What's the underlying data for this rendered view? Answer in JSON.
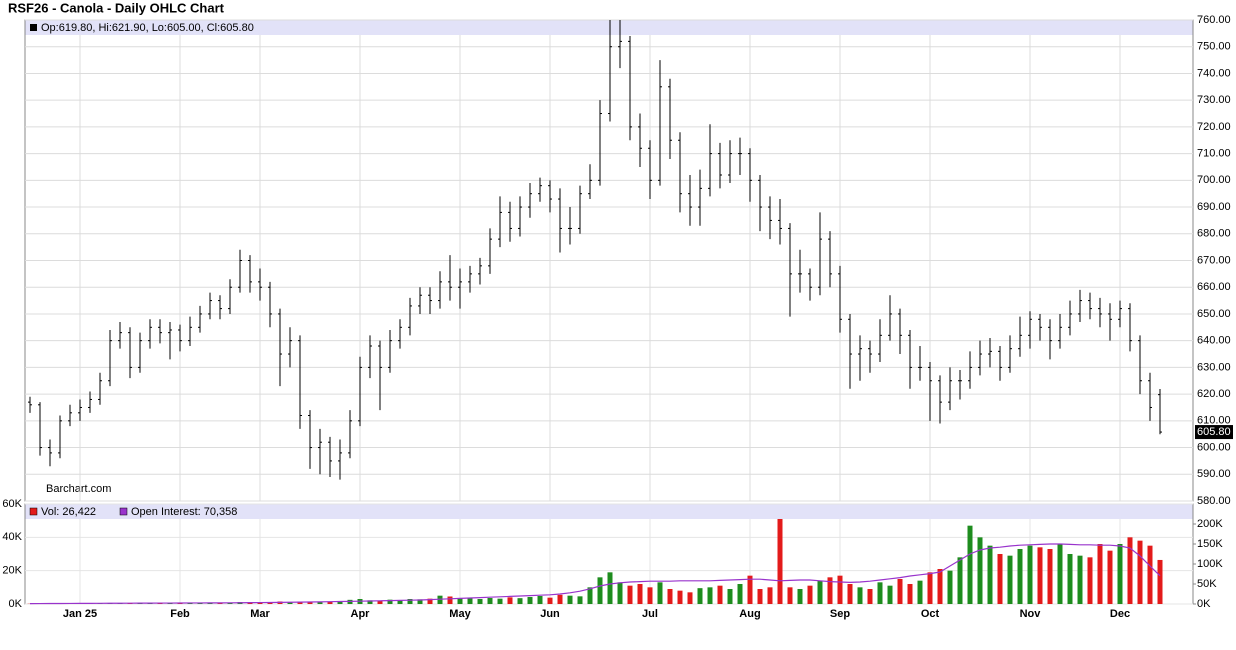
{
  "chart_data": [
    {
      "type": "ohlc",
      "title": "RSF26 - Canola - Daily OHLC Chart",
      "info": "Op:619.80, Hi:621.90, Lo:605.00, Cl:605.80",
      "watermark": "Barchart.com",
      "color": "#000000",
      "last_label": {
        "value": 605.8,
        "label": "605.80"
      },
      "ylim": [
        580,
        760
      ],
      "yticks": [
        {
          "value": 580,
          "label": "580.00"
        },
        {
          "value": 590,
          "label": "590.00"
        },
        {
          "value": 600,
          "label": "600.00"
        },
        {
          "value": 610,
          "label": "610.00"
        },
        {
          "value": 620,
          "label": "620.00"
        },
        {
          "value": 630,
          "label": "630.00"
        },
        {
          "value": 640,
          "label": "640.00"
        },
        {
          "value": 650,
          "label": "650.00"
        },
        {
          "value": 660,
          "label": "660.00"
        },
        {
          "value": 670,
          "label": "670.00"
        },
        {
          "value": 680,
          "label": "680.00"
        },
        {
          "value": 690,
          "label": "690.00"
        },
        {
          "value": 700,
          "label": "700.00"
        },
        {
          "value": 710,
          "label": "710.00"
        },
        {
          "value": 720,
          "label": "720.00"
        },
        {
          "value": 730,
          "label": "730.00"
        },
        {
          "value": 740,
          "label": "740.00"
        },
        {
          "value": 750,
          "label": "750.00"
        },
        {
          "value": 760,
          "label": "760.00"
        }
      ],
      "grid": true,
      "ohlc": [
        [
          617,
          619,
          613,
          616
        ],
        [
          616,
          617,
          597,
          600
        ],
        [
          600,
          603,
          593,
          598
        ],
        [
          598,
          612,
          596,
          610
        ],
        [
          610,
          616,
          608,
          613
        ],
        [
          613,
          618,
          610,
          615
        ],
        [
          615,
          621,
          613,
          618
        ],
        [
          618,
          628,
          616,
          625
        ],
        [
          625,
          644,
          623,
          640
        ],
        [
          640,
          647,
          637,
          643
        ],
        [
          643,
          645,
          626,
          630
        ],
        [
          630,
          643,
          628,
          640
        ],
        [
          640,
          648,
          637,
          645
        ],
        [
          645,
          648,
          639,
          643
        ],
        [
          643,
          647,
          633,
          644
        ],
        [
          644,
          646,
          636,
          640
        ],
        [
          640,
          649,
          638,
          645
        ],
        [
          645,
          653,
          643,
          650
        ],
        [
          650,
          658,
          648,
          655
        ],
        [
          655,
          657,
          648,
          652
        ],
        [
          652,
          663,
          650,
          660
        ],
        [
          660,
          674,
          658,
          670
        ],
        [
          670,
          672,
          658,
          662
        ],
        [
          662,
          667,
          655,
          660
        ],
        [
          660,
          662,
          645,
          650
        ],
        [
          650,
          652,
          623,
          635
        ],
        [
          635,
          645,
          630,
          640
        ],
        [
          640,
          642,
          607,
          612
        ],
        [
          612,
          614,
          592,
          600
        ],
        [
          600,
          607,
          590,
          602
        ],
        [
          602,
          604,
          589,
          595
        ],
        [
          595,
          603,
          588,
          598
        ],
        [
          598,
          614,
          596,
          610
        ],
        [
          610,
          634,
          608,
          630
        ],
        [
          630,
          642,
          626,
          638
        ],
        [
          638,
          640,
          614,
          630
        ],
        [
          630,
          644,
          628,
          640
        ],
        [
          640,
          648,
          637,
          645
        ],
        [
          645,
          656,
          642,
          653
        ],
        [
          653,
          660,
          650,
          657
        ],
        [
          657,
          660,
          650,
          655
        ],
        [
          655,
          666,
          652,
          662
        ],
        [
          662,
          672,
          655,
          660
        ],
        [
          660,
          667,
          652,
          662
        ],
        [
          662,
          668,
          658,
          665
        ],
        [
          665,
          671,
          661,
          668
        ],
        [
          668,
          682,
          665,
          678
        ],
        [
          678,
          694,
          675,
          688
        ],
        [
          688,
          692,
          677,
          682
        ],
        [
          682,
          694,
          679,
          690
        ],
        [
          690,
          699,
          686,
          695
        ],
        [
          695,
          701,
          692,
          698
        ],
        [
          698,
          700,
          688,
          693
        ],
        [
          693,
          697,
          673,
          682
        ],
        [
          682,
          690,
          676,
          682
        ],
        [
          682,
          698,
          680,
          695
        ],
        [
          695,
          706,
          693,
          700
        ],
        [
          700,
          730,
          698,
          725
        ],
        [
          725,
          760,
          722,
          750
        ],
        [
          750,
          760,
          742,
          752
        ],
        [
          752,
          754,
          715,
          720
        ],
        [
          720,
          725,
          705,
          712
        ],
        [
          712,
          715,
          693,
          700
        ],
        [
          700,
          745,
          698,
          735
        ],
        [
          735,
          738,
          708,
          715
        ],
        [
          715,
          718,
          688,
          695
        ],
        [
          695,
          702,
          683,
          690
        ],
        [
          690,
          704,
          683,
          697
        ],
        [
          697,
          721,
          694,
          710
        ],
        [
          710,
          714,
          697,
          702
        ],
        [
          702,
          715,
          699,
          710
        ],
        [
          710,
          716,
          702,
          710
        ],
        [
          710,
          712,
          692,
          700
        ],
        [
          700,
          702,
          681,
          690
        ],
        [
          690,
          694,
          678,
          685
        ],
        [
          685,
          693,
          676,
          682
        ],
        [
          682,
          684,
          649,
          665
        ],
        [
          665,
          674,
          658,
          665
        ],
        [
          665,
          667,
          655,
          660
        ],
        [
          660,
          688,
          657,
          678
        ],
        [
          678,
          681,
          660,
          665
        ],
        [
          665,
          668,
          643,
          648
        ],
        [
          648,
          650,
          622,
          635
        ],
        [
          635,
          642,
          625,
          637
        ],
        [
          637,
          640,
          628,
          635
        ],
        [
          635,
          648,
          632,
          642
        ],
        [
          642,
          657,
          640,
          650
        ],
        [
          650,
          652,
          635,
          642
        ],
        [
          642,
          644,
          622,
          630
        ],
        [
          630,
          638,
          625,
          630
        ],
        [
          630,
          632,
          610,
          625
        ],
        [
          625,
          627,
          609,
          617
        ],
        [
          617,
          630,
          614,
          625
        ],
        [
          625,
          629,
          618,
          625
        ],
        [
          625,
          636,
          622,
          630
        ],
        [
          630,
          640,
          627,
          635
        ],
        [
          635,
          641,
          630,
          636
        ],
        [
          636,
          638,
          625,
          630
        ],
        [
          630,
          642,
          628,
          637
        ],
        [
          637,
          649,
          634,
          642
        ],
        [
          642,
          651,
          637,
          648
        ],
        [
          648,
          650,
          640,
          645
        ],
        [
          645,
          648,
          633,
          640
        ],
        [
          640,
          650,
          637,
          645
        ],
        [
          645,
          655,
          642,
          650
        ],
        [
          650,
          659,
          647,
          655
        ],
        [
          655,
          658,
          648,
          652
        ],
        [
          652,
          656,
          645,
          650
        ],
        [
          650,
          654,
          640,
          648
        ],
        [
          648,
          655,
          645,
          652
        ],
        [
          652,
          654,
          636,
          640
        ],
        [
          640,
          642,
          620,
          625
        ],
        [
          625,
          628,
          610,
          615
        ],
        [
          619.8,
          621.9,
          605,
          605.8
        ]
      ]
    },
    {
      "type": "bar",
      "categories": [
        null,
        null,
        null,
        null,
        null,
        "Jan 25",
        null,
        null,
        null,
        null,
        null,
        null,
        null,
        null,
        null,
        "Feb",
        null,
        null,
        null,
        null,
        null,
        null,
        null,
        "Mar",
        null,
        null,
        null,
        null,
        null,
        null,
        null,
        null,
        null,
        "Apr",
        null,
        null,
        null,
        null,
        null,
        null,
        null,
        null,
        null,
        "May",
        null,
        null,
        null,
        null,
        null,
        null,
        null,
        null,
        "Jun",
        null,
        null,
        null,
        null,
        null,
        null,
        null,
        null,
        null,
        "Jul",
        null,
        null,
        null,
        null,
        null,
        null,
        null,
        null,
        null,
        "Aug",
        null,
        null,
        null,
        null,
        null,
        null,
        null,
        null,
        "Sep",
        null,
        null,
        null,
        null,
        null,
        null,
        null,
        null,
        "Oct",
        null,
        null,
        null,
        null,
        null,
        null,
        null,
        null,
        null,
        "Nov",
        null,
        null,
        null,
        null,
        null,
        null,
        null,
        null,
        "Dec",
        null,
        null,
        null,
        null
      ],
      "colors": {
        "up": "#1e8c1e",
        "down": "#e31a1a"
      },
      "series": [
        {
          "name": "Vol: 26,422",
          "color": "#e31a1a",
          "values": [
            150,
            200,
            180,
            220,
            250,
            200,
            300,
            260,
            280,
            300,
            320,
            300,
            350,
            400,
            380,
            420,
            450,
            400,
            500,
            480,
            600,
            1200,
            900,
            800,
            1000,
            1500,
            1200,
            1400,
            1300,
            1100,
            1500,
            1800,
            2500,
            3000,
            2200,
            1800,
            2600,
            2400,
            3000,
            2800,
            3200,
            5000,
            4500,
            3500,
            3800,
            3000,
            3600,
            3200,
            4000,
            3500,
            4200,
            4800,
            3800,
            5500,
            5000,
            4600,
            10000,
            16000,
            19000,
            13000,
            11000,
            12000,
            10000,
            13000,
            9000,
            8000,
            7000,
            9500,
            10000,
            11000,
            9000,
            12000,
            17000,
            9000,
            10000,
            51000,
            10000,
            9000,
            11000,
            14000,
            16000,
            17000,
            12000,
            10000,
            9000,
            13000,
            11000,
            15000,
            12000,
            14000,
            19000,
            21000,
            20000,
            28000,
            47000,
            40000,
            35000,
            30000,
            29000,
            33000,
            35000,
            34000,
            33000,
            36000,
            30000,
            29000,
            28000,
            36000,
            32000,
            36000,
            40000,
            38000,
            35000,
            26422
          ]
        },
        {
          "name": "Open Interest: 70,358",
          "color": "#9933cc",
          "axis": "y2",
          "values": [
            1000,
            1100,
            1200,
            1300,
            1400,
            1500,
            1600,
            1700,
            1800,
            1900,
            2000,
            2100,
            2200,
            2300,
            2400,
            2500,
            2600,
            2700,
            2800,
            2900,
            3000,
            3200,
            3400,
            3600,
            3800,
            4000,
            4300,
            4600,
            5000,
            5400,
            5800,
            6200,
            6600,
            7000,
            7500,
            8000,
            8500,
            9000,
            9500,
            10000,
            11000,
            12000,
            13000,
            14000,
            15000,
            16000,
            17000,
            18000,
            19000,
            20000,
            21000,
            22000,
            23000,
            25000,
            28000,
            32000,
            38000,
            45000,
            50000,
            53000,
            55000,
            56000,
            57000,
            57000,
            57000,
            58000,
            58000,
            58000,
            58000,
            59000,
            60000,
            61000,
            62000,
            62000,
            60000,
            58000,
            59000,
            60000,
            60000,
            58000,
            56000,
            55000,
            54000,
            55000,
            57000,
            60000,
            63000,
            66000,
            70000,
            73000,
            76000,
            80000,
            95000,
            110000,
            125000,
            135000,
            140000,
            142000,
            145000,
            147000,
            148000,
            149000,
            150000,
            150000,
            149000,
            148000,
            148000,
            147000,
            147000,
            145000,
            140000,
            120000,
            95000,
            70358
          ]
        }
      ],
      "ylim": [
        0,
        60000
      ],
      "yticks": [
        {
          "value": 0,
          "label": "0K"
        },
        {
          "value": 20000,
          "label": "20K"
        },
        {
          "value": 40000,
          "label": "40K"
        },
        {
          "value": 60000,
          "label": "60K"
        }
      ],
      "y2lim": [
        0,
        250000
      ],
      "y2ticks": [
        {
          "value": 0,
          "label": "0K"
        },
        {
          "value": 50000,
          "label": "50K"
        },
        {
          "value": 100000,
          "label": "100K"
        },
        {
          "value": 150000,
          "label": "150K"
        },
        {
          "value": 200000,
          "label": "200K"
        }
      ]
    }
  ]
}
